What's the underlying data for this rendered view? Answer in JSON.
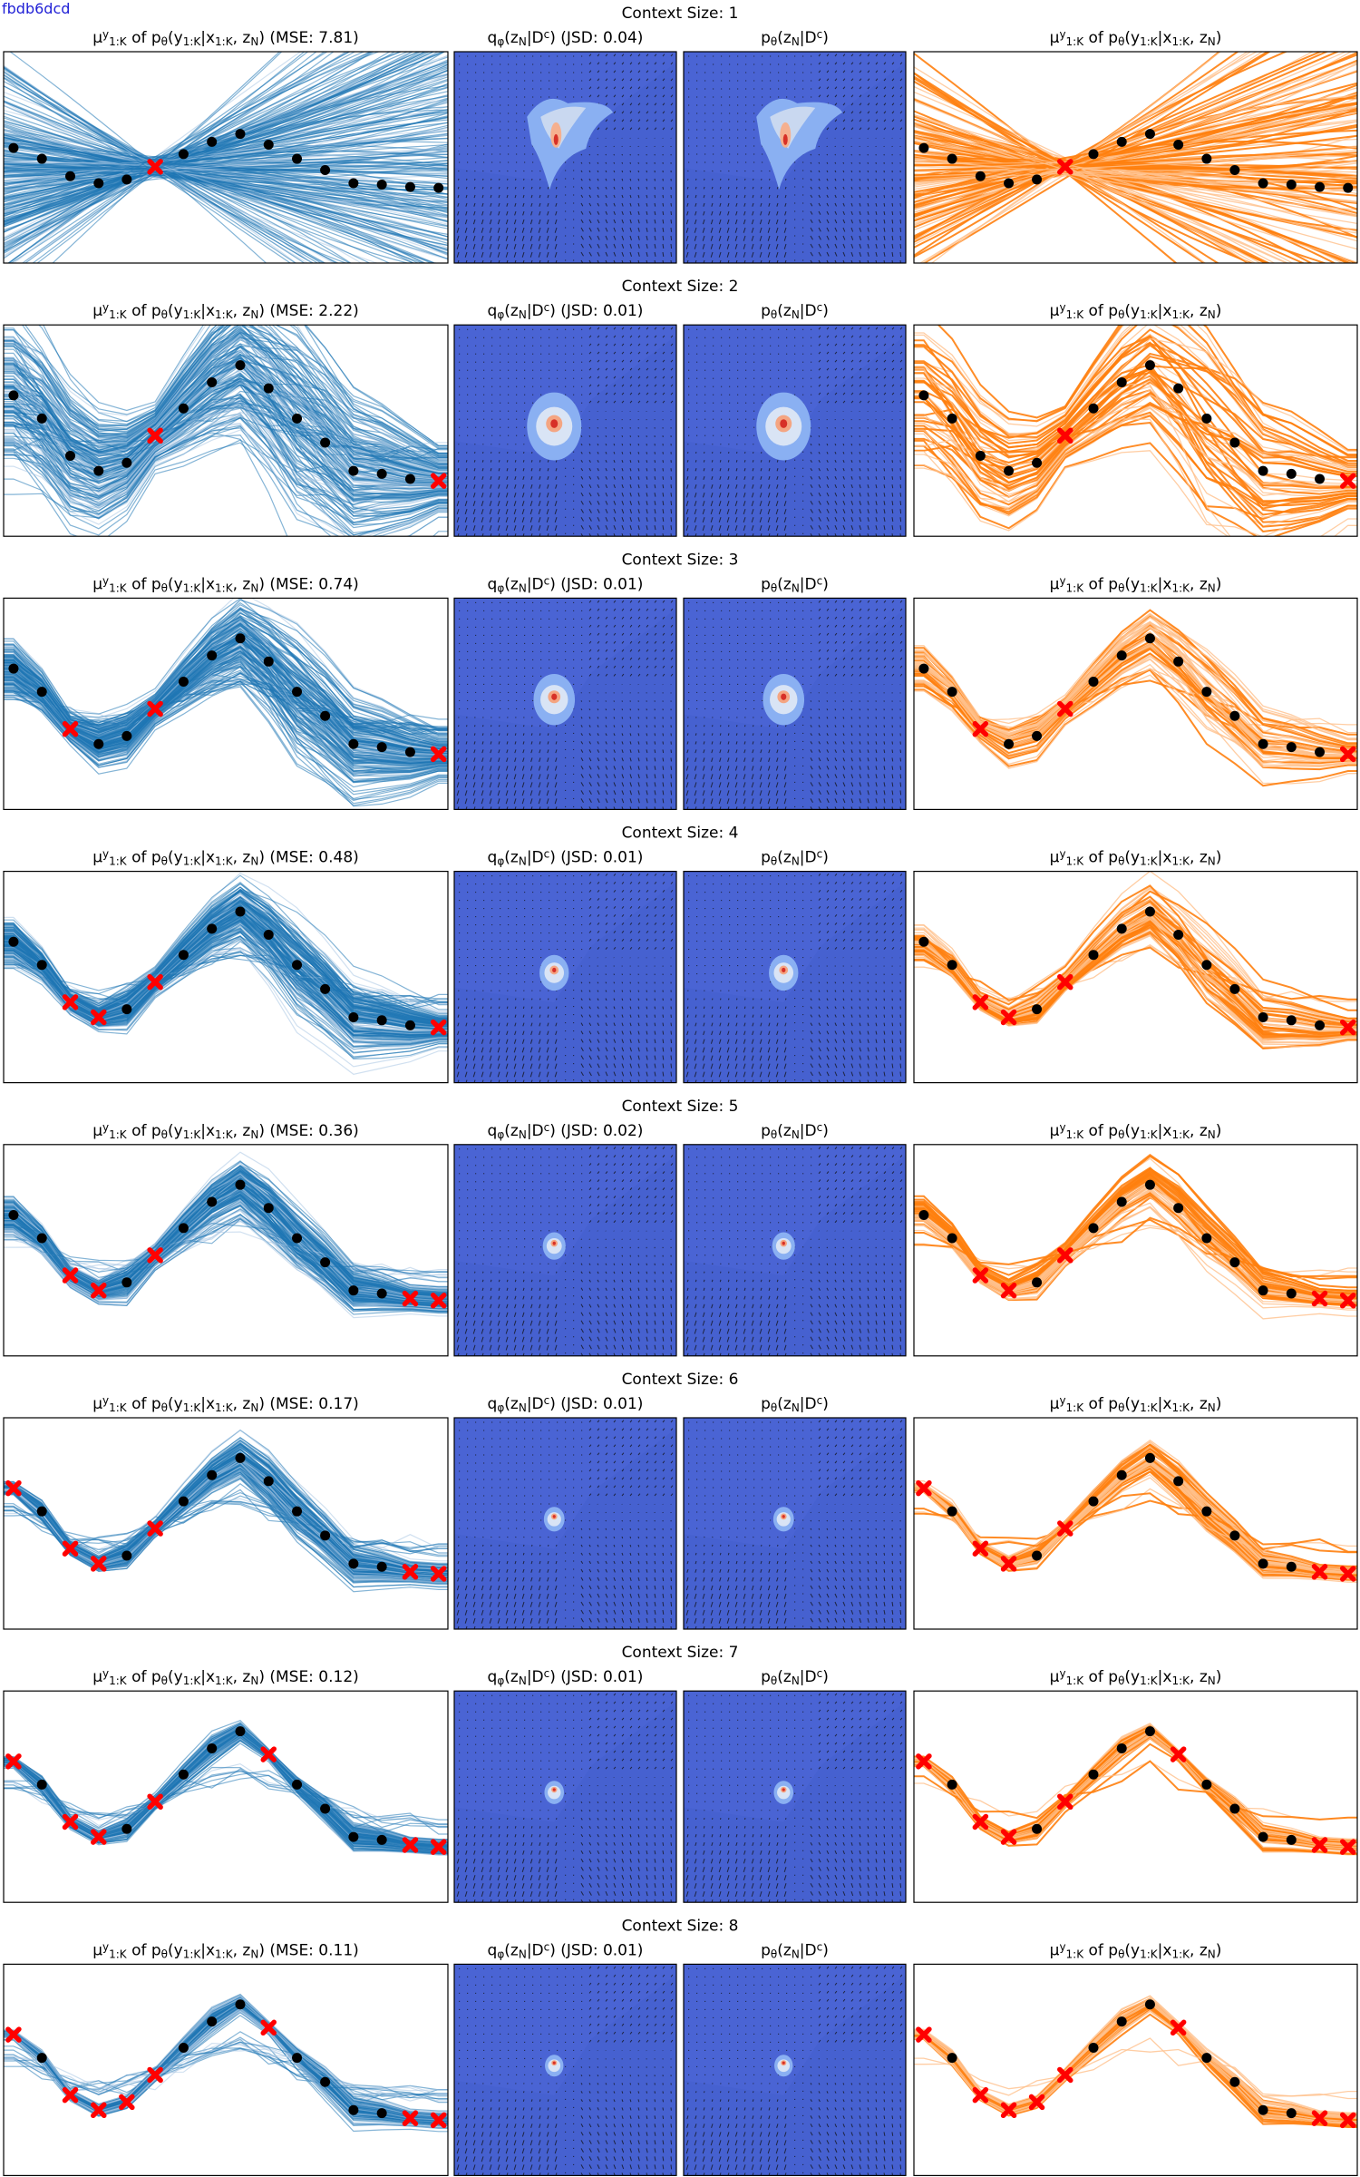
{
  "page_tag": "fbdb6dcd",
  "colors": {
    "blue_band": "#1f77b4",
    "blue_line": "#a9c7e3",
    "orange": "#ff7f0e",
    "orange_light": "#ffc18c",
    "heat_bg": "#4a64d4",
    "context_marker": "#ff0000",
    "target_marker": "#000000"
  },
  "x_points": [
    0.0,
    0.143,
    0.286,
    0.429,
    0.571,
    0.714,
    0.857,
    1.0,
    1.143,
    1.286,
    1.429,
    1.571,
    1.714,
    1.857,
    2.0,
    2.143
  ],
  "x_points_note_removed": "",
  "y_points": [
    0.85,
    0.62,
    0.25,
    0.1,
    0.18,
    0.45,
    0.72,
    0.98,
    1.15,
    0.92,
    0.62,
    0.38,
    0.1,
    0.07,
    0.02,
    0.0
  ],
  "chart_data": [
    {
      "type": "line",
      "context_size": 1,
      "title": "Context Size: 1",
      "left_title": "μ^y_{1:K} of p_θ(y_{1:K}|x_{1:K}, z_N) (MSE: 7.81)",
      "mse": 7.81,
      "mid_left_title": "q_φ(z_N|D^c) (JSD: 0.04)",
      "jsd": 0.04,
      "mid_right_title": "p_θ(z_N|D^c)",
      "right_title": "μ^y_{1:K} of p_θ(y_{1:K}|x_{1:K}, z_N)",
      "context_indices": [
        5
      ]
    },
    {
      "type": "line",
      "context_size": 2,
      "title": "Context Size: 2",
      "left_title": "μ^y_{1:K} of p_θ(y_{1:K}|x_{1:K}, z_N) (MSE: 2.22)",
      "mse": 2.22,
      "mid_left_title": "q_φ(z_N|D^c) (JSD: 0.01)",
      "jsd": 0.01,
      "mid_right_title": "p_θ(z_N|D^c)",
      "right_title": "μ^y_{1:K} of p_θ(y_{1:K}|x_{1:K}, z_N)",
      "context_indices": [
        5,
        15
      ]
    },
    {
      "type": "line",
      "context_size": 3,
      "title": "Context Size: 3",
      "left_title": "μ^y_{1:K} of p_θ(y_{1:K}|x_{1:K}, z_N) (MSE: 0.74)",
      "mse": 0.74,
      "mid_left_title": "q_φ(z_N|D^c) (JSD: 0.01)",
      "jsd": 0.01,
      "mid_right_title": "p_θ(z_N|D^c)",
      "right_title": "μ^y_{1:K} of p_θ(y_{1:K}|x_{1:K}, z_N)",
      "context_indices": [
        2,
        5,
        15
      ]
    },
    {
      "type": "line",
      "context_size": 4,
      "title": "Context Size: 4",
      "left_title": "μ^y_{1:K} of p_θ(y_{1:K}|x_{1:K}, z_N) (MSE: 0.48)",
      "mse": 0.48,
      "mid_left_title": "q_φ(z_N|D^c) (JSD: 0.01)",
      "jsd": 0.01,
      "mid_right_title": "p_θ(z_N|D^c)",
      "right_title": "μ^y_{1:K} of p_θ(y_{1:K}|x_{1:K}, z_N)",
      "context_indices": [
        2,
        3,
        5,
        15
      ]
    },
    {
      "type": "line",
      "context_size": 5,
      "title": "Context Size: 5",
      "left_title": "μ^y_{1:K} of p_θ(y_{1:K}|x_{1:K}, z_N) (MSE: 0.36)",
      "mse": 0.36,
      "mid_left_title": "q_φ(z_N|D^c) (JSD: 0.02)",
      "jsd": 0.02,
      "mid_right_title": "p_θ(z_N|D^c)",
      "right_title": "μ^y_{1:K} of p_θ(y_{1:K}|x_{1:K}, z_N)",
      "context_indices": [
        2,
        3,
        5,
        14,
        15
      ]
    },
    {
      "type": "line",
      "context_size": 6,
      "title": "Context Size: 6",
      "left_title": "μ^y_{1:K} of p_θ(y_{1:K}|x_{1:K}, z_N) (MSE: 0.17)",
      "mse": 0.17,
      "mid_left_title": "q_φ(z_N|D^c) (JSD: 0.01)",
      "jsd": 0.01,
      "mid_right_title": "p_θ(z_N|D^c)",
      "right_title": "μ^y_{1:K} of p_θ(y_{1:K}|x_{1:K}, z_N)",
      "context_indices": [
        0,
        2,
        3,
        5,
        14,
        15
      ]
    },
    {
      "type": "line",
      "context_size": 7,
      "title": "Context Size: 7",
      "left_title": "μ^y_{1:K} of p_θ(y_{1:K}|x_{1:K}, z_N) (MSE: 0.12)",
      "mse": 0.12,
      "mid_left_title": "q_φ(z_N|D^c) (JSD: 0.01)",
      "jsd": 0.01,
      "mid_right_title": "p_θ(z_N|D^c)",
      "right_title": "μ^y_{1:K} of p_θ(y_{1:K}|x_{1:K}, z_N)",
      "context_indices": [
        0,
        2,
        3,
        5,
        9,
        14,
        15
      ]
    },
    {
      "type": "line",
      "context_size": 8,
      "title": "Context Size: 8",
      "left_title": "μ^y_{1:K} of p_θ(y_{1:K}|x_{1:K}, z_N) (MSE: 0.11)",
      "mse": 0.11,
      "mid_left_title": "q_φ(z_N|D^c) (JSD: 0.01)",
      "jsd": 0.01,
      "mid_right_title": "p_θ(z_N|D^c)",
      "right_title": "μ^y_{1:K} of p_θ(y_{1:K}|x_{1:K}, z_N)",
      "context_indices": [
        0,
        2,
        3,
        4,
        5,
        9,
        14,
        15
      ]
    }
  ]
}
